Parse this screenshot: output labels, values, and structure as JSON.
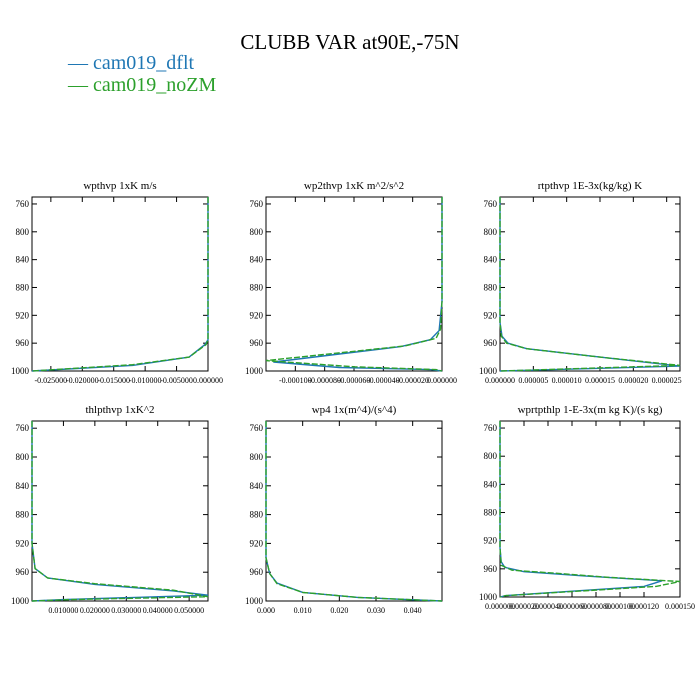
{
  "figure": {
    "title": "CLUBB VAR at90E,-75N"
  },
  "legend": [
    {
      "label": "— cam019_dflt",
      "color": "#1f77b4"
    },
    {
      "label": "— cam019_noZM",
      "color": "#2ca02c"
    }
  ],
  "chart_data": [
    {
      "type": "line",
      "title": "wpthvp   1xK m/s",
      "xlim": [
        -0.028,
        0.0
      ],
      "ylim": [
        1000,
        750
      ],
      "xticks": [
        -0.025,
        -0.02,
        -0.015,
        -0.01,
        -0.005,
        0.0
      ],
      "xtick_labels": [
        "-0.025000",
        "-0.020000",
        "-0.015000",
        "-0.010000",
        "-0.005000",
        "0.000000"
      ],
      "yticks": [
        760,
        800,
        840,
        880,
        920,
        960,
        1000
      ],
      "series": [
        {
          "name": "cam019_dflt",
          "color": "#1f77b4",
          "x": [
            0.0,
            0.0,
            0.0,
            -0.0005,
            -0.003,
            -0.012,
            -0.028
          ],
          "y": [
            750,
            900,
            955,
            962,
            980,
            992,
            1000
          ]
        },
        {
          "name": "cam019_noZM",
          "color": "#2ca02c",
          "x": [
            0.0,
            0.0,
            0.0,
            -0.0003,
            -0.003,
            -0.012,
            -0.028
          ],
          "y": [
            750,
            900,
            955,
            962,
            980,
            991,
            1000
          ]
        }
      ]
    },
    {
      "type": "line",
      "title": "wp2thvp   1xK m^2/s^2",
      "xlim": [
        -0.00012,
        0.0
      ],
      "ylim": [
        1000,
        750
      ],
      "xticks": [
        -0.0001,
        -8e-05,
        -6e-05,
        -4e-05,
        -2e-05,
        0.0
      ],
      "xtick_labels": [
        "-0.000100",
        "-0.000080",
        "-0.000060",
        "-0.000040",
        "-0.000020",
        "0.000000"
      ],
      "yticks": [
        760,
        800,
        840,
        880,
        920,
        960,
        1000
      ],
      "series": [
        {
          "name": "cam019_dflt",
          "color": "#1f77b4",
          "x": [
            0.0,
            0.0,
            -2e-06,
            -8e-06,
            -2.8e-05,
            -0.000115,
            -7e-05,
            -8e-06,
            0.0
          ],
          "y": [
            750,
            900,
            942,
            955,
            965,
            987,
            995,
            998,
            1000
          ]
        },
        {
          "name": "cam019_noZM",
          "color": "#2ca02c",
          "x": [
            0.0,
            0.0,
            -1e-06,
            -4e-06,
            -2.5e-05,
            -0.00012,
            -6e-05,
            -4e-06,
            0.0
          ],
          "y": [
            750,
            900,
            940,
            953,
            964,
            985,
            994,
            998,
            1000
          ]
        }
      ]
    },
    {
      "type": "line",
      "title": "rtpthvp   1E-3x(kg/kg) K",
      "xlim": [
        0.0,
        2.7e-05
      ],
      "ylim": [
        1000,
        750
      ],
      "xticks": [
        0.0,
        5e-06,
        1e-05,
        1.5e-05,
        2e-05,
        2.5e-05
      ],
      "xtick_labels": [
        "0.000000",
        "0.000005",
        "0.000010",
        "0.000015",
        "0.000020",
        "0.000025"
      ],
      "yticks": [
        760,
        800,
        840,
        880,
        920,
        960,
        1000
      ],
      "series": [
        {
          "name": "cam019_dflt",
          "color": "#1f77b4",
          "x": [
            0.0,
            0.0,
            3e-07,
            1.2e-06,
            4e-06,
            1.5e-05,
            2.7e-05,
            0.0
          ],
          "y": [
            750,
            930,
            950,
            960,
            968,
            980,
            993,
            1000
          ]
        },
        {
          "name": "cam019_noZM",
          "color": "#2ca02c",
          "x": [
            0.0,
            0.0,
            2e-07,
            1e-06,
            4e-06,
            1.5e-05,
            2.7e-05,
            0.0
          ],
          "y": [
            750,
            930,
            950,
            960,
            968,
            980,
            992,
            1000
          ]
        }
      ]
    },
    {
      "type": "line",
      "title": "thlpthvp   1xK^2",
      "xlim": [
        0.0,
        0.056
      ],
      "ylim": [
        1000,
        750
      ],
      "xticks": [
        0.01,
        0.02,
        0.03,
        0.04,
        0.05
      ],
      "xtick_labels": [
        "0.010000",
        "0.020000",
        "0.030000",
        "0.040000",
        "0.050000"
      ],
      "yticks": [
        760,
        800,
        840,
        880,
        920,
        960,
        1000
      ],
      "series": [
        {
          "name": "cam019_dflt",
          "color": "#1f77b4",
          "x": [
            0.0,
            0.0,
            0.001,
            0.005,
            0.02,
            0.045,
            0.056,
            0.01,
            0.0
          ],
          "y": [
            750,
            920,
            955,
            968,
            977,
            986,
            992,
            998,
            1000
          ]
        },
        {
          "name": "cam019_noZM",
          "color": "#2ca02c",
          "x": [
            0.0,
            0.0,
            0.001,
            0.005,
            0.02,
            0.045,
            0.056,
            0.012,
            0.0
          ],
          "y": [
            750,
            920,
            955,
            968,
            976,
            985,
            994,
            998,
            1000
          ]
        }
      ]
    },
    {
      "type": "line",
      "title": "wp4   1x(m^4)/(s^4)",
      "xlim": [
        0.0,
        0.048
      ],
      "ylim": [
        1000,
        750
      ],
      "xticks": [
        0.0,
        0.01,
        0.02,
        0.03,
        0.04
      ],
      "xtick_labels": [
        "0.000",
        "0.010",
        "0.020",
        "0.030",
        "0.040"
      ],
      "yticks": [
        760,
        800,
        840,
        880,
        920,
        960,
        1000
      ],
      "series": [
        {
          "name": "cam019_dflt",
          "color": "#1f77b4",
          "x": [
            0.0,
            0.0,
            0.001,
            0.003,
            0.01,
            0.025,
            0.048
          ],
          "y": [
            750,
            940,
            962,
            975,
            988,
            995,
            1000
          ]
        },
        {
          "name": "cam019_noZM",
          "color": "#2ca02c",
          "x": [
            0.0,
            0.0,
            0.001,
            0.003,
            0.01,
            0.025,
            0.048
          ],
          "y": [
            750,
            940,
            962,
            976,
            988,
            995,
            1000
          ]
        }
      ]
    },
    {
      "type": "line",
      "title": "wprtpthlp   1-E-3x(m kg K)/(s kg)",
      "xlim": [
        0.0,
        0.00015
      ],
      "ylim": [
        1000,
        750
      ],
      "xticks": [
        0.0,
        2e-05,
        4e-05,
        6e-05,
        8e-05,
        0.0001,
        0.00012,
        0.00015
      ],
      "xtick_labels": [
        "0.000000",
        "0.000020",
        "0.000040",
        "0.000060",
        "0.000080",
        "0.000100",
        "0.000120",
        "0.000150"
      ],
      "yticks": [
        760,
        800,
        840,
        880,
        920,
        960,
        1000
      ],
      "series": [
        {
          "name": "cam019_dflt",
          "color": "#1f77b4",
          "x": [
            0.0,
            0.0,
            1e-06,
            4e-06,
            2e-05,
            7e-05,
            0.000135,
            0.00012,
            5e-06,
            0.0
          ],
          "y": [
            750,
            930,
            950,
            958,
            964,
            970,
            977,
            985,
            998,
            1000
          ]
        },
        {
          "name": "cam019_noZM",
          "color": "#2ca02c",
          "x": [
            0.0,
            0.0,
            1e-06,
            1e-05,
            4.5e-05,
            9e-05,
            0.00015,
            0.00013,
            5e-06,
            0.0
          ],
          "y": [
            750,
            930,
            955,
            962,
            966,
            972,
            978,
            985,
            998,
            1000
          ]
        }
      ]
    }
  ]
}
